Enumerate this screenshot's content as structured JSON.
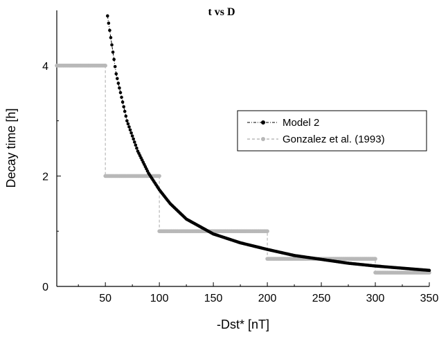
{
  "chart_data": {
    "type": "line",
    "title": "t vs D",
    "xlabel": "-Dst*  [nT]",
    "ylabel": "Decay time [h]",
    "xlim": [
      5,
      350
    ],
    "ylim": [
      0,
      5
    ],
    "xticks": [
      50,
      100,
      150,
      200,
      250,
      300,
      350
    ],
    "yticks": [
      0,
      2,
      4
    ],
    "grid": false,
    "legend_position": "right",
    "series": [
      {
        "name": "Model 2",
        "style": "dash-dot line with black dot markers",
        "color": "#000000",
        "x": [
          52,
          60,
          70,
          80,
          90,
          100,
          110,
          125,
          150,
          175,
          200,
          225,
          250,
          275,
          300,
          325,
          350
        ],
        "y": [
          4.9,
          3.85,
          3.0,
          2.45,
          2.05,
          1.75,
          1.5,
          1.22,
          0.95,
          0.79,
          0.67,
          0.56,
          0.49,
          0.42,
          0.37,
          0.33,
          0.29
        ]
      },
      {
        "name": "Gonzalez et al. (1993)",
        "style": "dashed line with gray dot markers (step)",
        "color": "#b8b8b8",
        "x": [
          5,
          50,
          50,
          100,
          100,
          200,
          200,
          300,
          300,
          350
        ],
        "y": [
          4,
          4,
          2,
          2,
          1,
          1,
          0.5,
          0.5,
          0.25,
          0.25
        ]
      }
    ]
  }
}
